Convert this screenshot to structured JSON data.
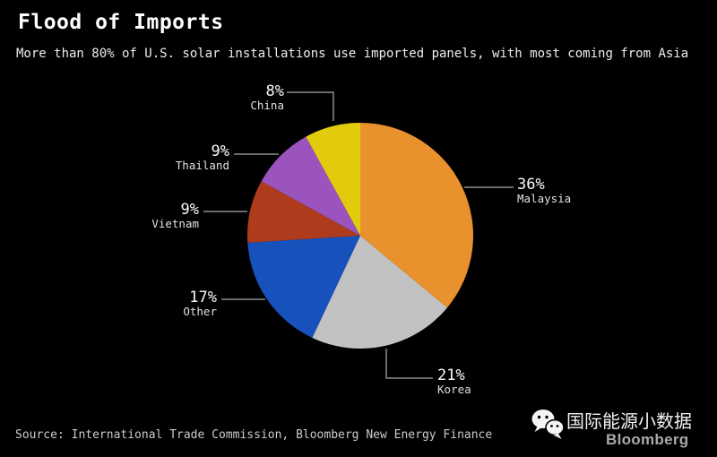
{
  "header": {
    "title": "Flood of Imports",
    "subtitle": "More than 80% of U.S. solar installations use imported panels, with most coming from Asia"
  },
  "chart_data": {
    "type": "pie",
    "title": "Flood of Imports",
    "subtitle": "More than 80% of U.S. solar installations use imported panels, with most coming from Asia",
    "unit": "percent",
    "direction": "clockwise",
    "start_angle": "12 o'clock",
    "legend_position": "callout-labels",
    "slices": [
      {
        "label": "Malaysia",
        "value": 36,
        "pct_text": "36%",
        "color": "#E9912D"
      },
      {
        "label": "Korea",
        "value": 21,
        "pct_text": "21%",
        "color": "#C2C2C2"
      },
      {
        "label": "Other",
        "value": 17,
        "pct_text": "17%",
        "color": "#1751BC"
      },
      {
        "label": "Vietnam",
        "value": 9,
        "pct_text": "9%",
        "color": "#AF3B1D"
      },
      {
        "label": "Thailand",
        "value": 9,
        "pct_text": "9%",
        "color": "#9B53BE"
      },
      {
        "label": "China",
        "value": 8,
        "pct_text": "8%",
        "color": "#E2CB0D"
      }
    ]
  },
  "footer": {
    "source": "Source: International Trade Commission, Bloomberg New Energy Finance"
  },
  "branding": {
    "wechat_icon": "wechat-icon",
    "wechat_account": "国际能源小数据",
    "logo_text": "Bloomberg"
  },
  "colors": {
    "background": "#000000",
    "leader_line": "#8C8C8C",
    "title_text": "#FFFFFF",
    "label_text": "#F0F0F0",
    "source_text": "#CBCBCB",
    "bloomberg_logo": "#A9A9A9"
  }
}
